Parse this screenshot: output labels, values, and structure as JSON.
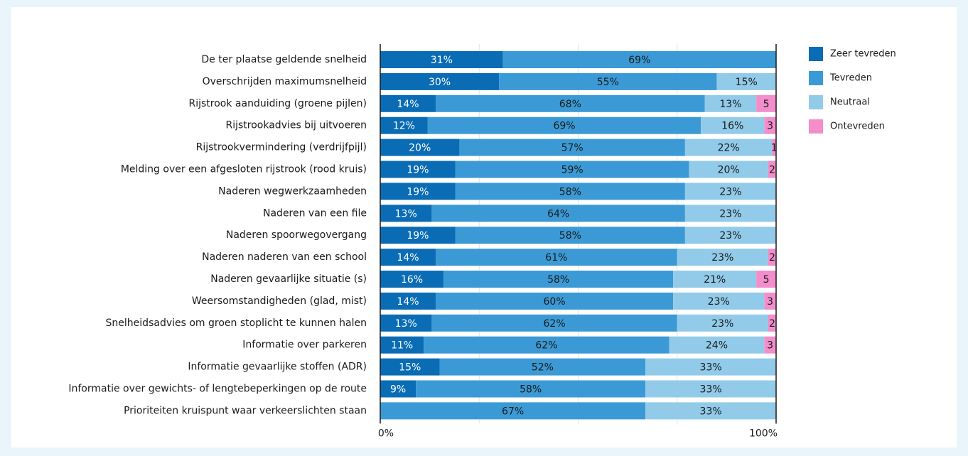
{
  "chart_data": {
    "type": "stacked-bar-horizontal",
    "categories": [
      "De ter plaatse geldende snelheid",
      "Overschrijden maximumsnelheid",
      "Rijstrook aanduiding (groene pijlen)",
      "Rijstrookadvies bij uitvoeren",
      "Rijstrookvermindering (verdrijfpijl)",
      "Melding over een afgesloten rijstrook (rood kruis)",
      "Naderen wegwerkzaamheden",
      "Naderen van een file",
      "Naderen spoorwegovergang",
      "Naderen naderen van een school",
      "Naderen gevaarlijke situatie (s)",
      "Weersomstandigheden (glad, mist)",
      "Snelheidsadvies om groen stoplicht te kunnen halen",
      "Informatie over parkeren",
      "Informatie gevaarlijke stoffen (ADR)",
      "Informatie over gewichts- of lengtebeperkingen op de route",
      "Prioriteiten kruispunt waar verkeerslichten staan"
    ],
    "series": [
      {
        "name": "Zeer tevreden",
        "color": "#0a6cb4",
        "values": [
          31,
          30,
          14,
          12,
          20,
          19,
          19,
          13,
          19,
          14,
          16,
          14,
          13,
          11,
          15,
          9,
          null
        ],
        "value_labels": [
          "31%",
          "30%",
          "14%",
          "12%",
          "20%",
          "19%",
          "19%",
          "13%",
          "19%",
          "14%",
          "16%",
          "14%",
          "13%",
          "11%",
          "15%",
          "9%",
          null
        ]
      },
      {
        "name": "Tevreden",
        "color": "#3b9ad5",
        "values": [
          69,
          55,
          68,
          69,
          57,
          59,
          58,
          64,
          58,
          61,
          58,
          60,
          62,
          62,
          52,
          58,
          67
        ],
        "value_labels": [
          "69%",
          "55%",
          "68%",
          "69%",
          "57%",
          "59%",
          "58%",
          "64%",
          "58%",
          "61%",
          "58%",
          "60%",
          "62%",
          "62%",
          "52%",
          "58%",
          "67%"
        ]
      },
      {
        "name": "Neutraal",
        "color": "#92cbe9",
        "values": [
          null,
          15,
          13,
          16,
          22,
          20,
          23,
          23,
          23,
          23,
          21,
          23,
          23,
          24,
          33,
          33,
          33
        ],
        "value_labels": [
          null,
          "15%",
          "13%",
          "16%",
          "22%",
          "20%",
          "23%",
          "23%",
          "23%",
          "23%",
          "21%",
          "23%",
          "23%",
          "24%",
          "33%",
          "33%",
          "33%"
        ]
      },
      {
        "name": "Ontevreden",
        "color": "#f28ecb",
        "values": [
          null,
          null,
          5,
          3,
          1,
          2,
          null,
          null,
          null,
          2,
          5,
          3,
          2,
          3,
          null,
          null,
          null
        ]
      }
    ],
    "xlim": [
      0,
      100
    ],
    "xticks": [
      {
        "value": 0,
        "label": "0%"
      },
      {
        "value": 100,
        "label": "100%"
      }
    ],
    "xgrid": [
      25,
      50,
      75
    ],
    "legend": "right"
  }
}
